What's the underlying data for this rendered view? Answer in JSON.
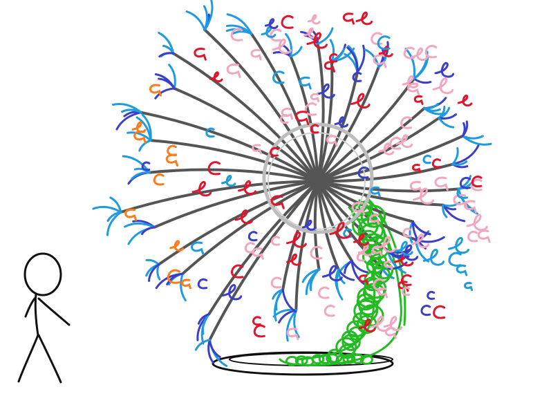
{
  "scene": {
    "subject": "stick-figure-and-tree",
    "colors": {
      "ink": "#111111",
      "branch": "#555555",
      "ring": "#bdbdbd",
      "trunk": "#22bb22",
      "red": "#e0152b",
      "pink": "#f2a6c0",
      "blue": "#3a3fc8",
      "cyan": "#1e9be0",
      "orange": "#ff7a1a"
    }
  }
}
